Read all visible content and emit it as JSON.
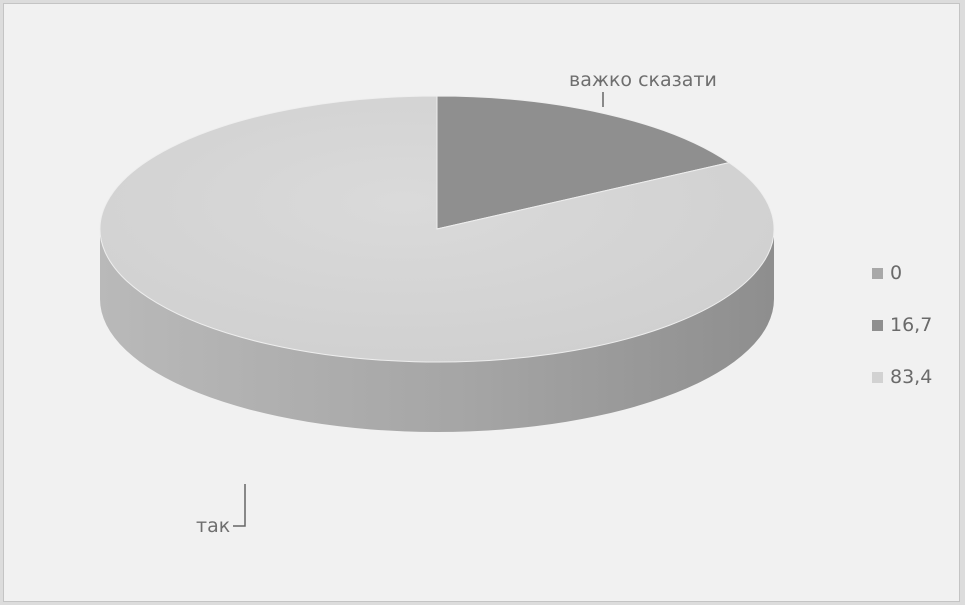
{
  "chart_data": {
    "type": "pie",
    "three_d": true,
    "slices": [
      {
        "value": 0,
        "color": "#a8a8a8"
      },
      {
        "value": 16.7,
        "color": "#8f8f8f"
      },
      {
        "value": 83.4,
        "color": "#d2d2d2"
      }
    ],
    "slice_labels": [
      "важко сказати",
      "так"
    ],
    "legend": {
      "position": "right",
      "entries": [
        "0",
        "16,7",
        "83,4"
      ]
    }
  }
}
